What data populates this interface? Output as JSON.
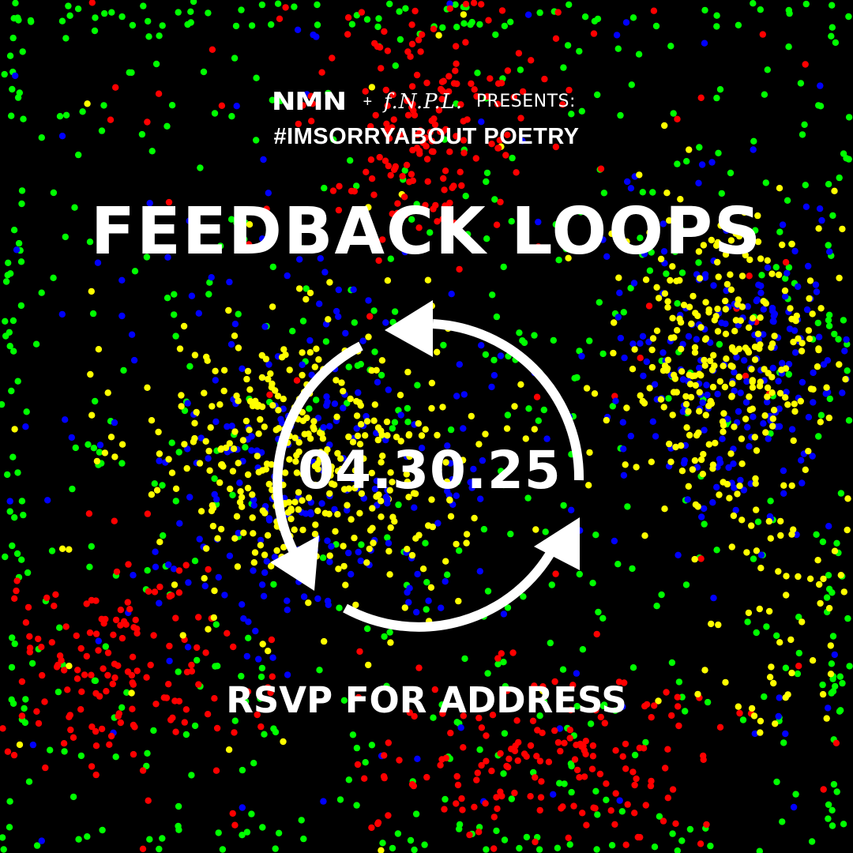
{
  "header": {
    "logo_nmn": "NMN",
    "plus": "+",
    "logo_fnpl": "f.N.P.L.",
    "presents": "PRESENTS:"
  },
  "subtitle": "#IMSORRYABOUT POETRY",
  "title": "FEEDBACK LOOPS",
  "date": "04.30.25",
  "rsvp": "RSVP FOR ADDRESS",
  "icons": {
    "loop": "cycle-arrows-icon"
  },
  "colors": {
    "background": "#000000",
    "text": "#ffffff",
    "dot_red": "#ff0000",
    "dot_green": "#00ff00",
    "dot_blue": "#0000ff",
    "dot_yellow": "#ffff00"
  }
}
